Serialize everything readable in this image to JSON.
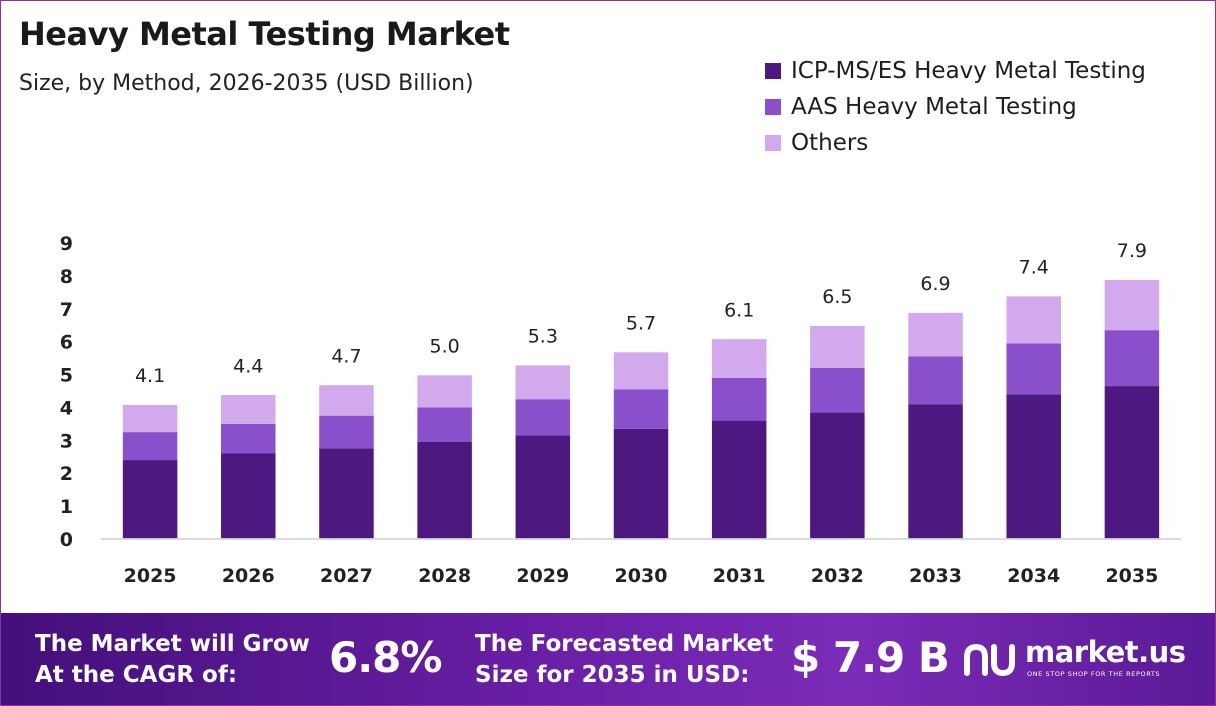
{
  "colors": {
    "icp": "#4e1881",
    "aas": "#8a4fcb",
    "others": "#d3a9ee",
    "footer_start": "#43107a",
    "footer_end": "#7b2cb8"
  },
  "chart_data": {
    "type": "bar",
    "stacked": true,
    "title": "Heavy Metal Testing Market",
    "subtitle": "Size, by Method, 2026-2035 (USD Billion)",
    "categories": [
      "2025",
      "2026",
      "2027",
      "2028",
      "2029",
      "2030",
      "2031",
      "2032",
      "2033",
      "2034",
      "2035"
    ],
    "series": [
      {
        "name": "ICP-MS/ES Heavy Metal Testing",
        "values": [
          2.4,
          2.6,
          2.75,
          2.95,
          3.15,
          3.35,
          3.6,
          3.85,
          4.1,
          4.4,
          4.65
        ]
      },
      {
        "name": "AAS Heavy Metal Testing",
        "values": [
          0.85,
          0.9,
          1.0,
          1.05,
          1.1,
          1.2,
          1.3,
          1.35,
          1.45,
          1.55,
          1.7
        ]
      },
      {
        "name": "Others",
        "values": [
          0.85,
          0.9,
          0.95,
          1.0,
          1.05,
          1.15,
          1.2,
          1.3,
          1.35,
          1.45,
          1.55
        ]
      }
    ],
    "totals": [
      "4.1",
      "4.4",
      "4.7",
      "5.0",
      "5.3",
      "5.7",
      "6.1",
      "6.5",
      "6.9",
      "7.4",
      "7.9"
    ],
    "yticks": [
      "0",
      "1",
      "2",
      "3",
      "4",
      "5",
      "6",
      "7",
      "8",
      "9"
    ],
    "ylim": [
      0,
      9
    ],
    "xlabel": "",
    "ylabel": "",
    "grid": false,
    "legend_position": "top-right"
  },
  "footer": {
    "cagr_label_line1": "The Market will Grow",
    "cagr_label_line2": "At the CAGR of:",
    "cagr_value": "6.8%",
    "forecast_label_line1": "The Forecasted Market",
    "forecast_label_line2": "Size for 2035 in USD:",
    "forecast_value": "$ 7.9 B",
    "logo_text": "market.us",
    "logo_tagline": "ONE STOP SHOP FOR THE REPORTS",
    "logo_icon": "market-us-logo-icon"
  }
}
